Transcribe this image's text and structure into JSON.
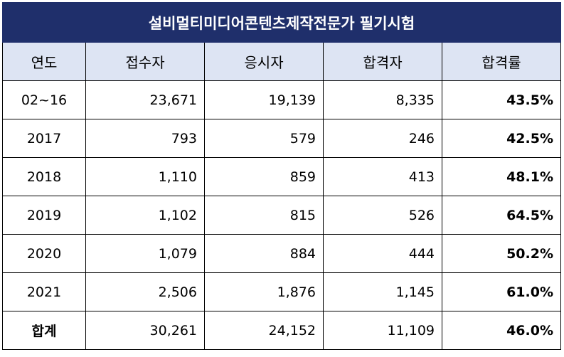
{
  "table": {
    "title": "설비멀티미디어콘텐츠제작전문가 필기시험",
    "headers": [
      "연도",
      "접수자",
      "응시자",
      "합격자",
      "합격률"
    ],
    "rows": [
      {
        "year": "02~16",
        "applicants": "23,671",
        "examinees": "19,139",
        "passers": "8,335",
        "pass_rate": "43.5%"
      },
      {
        "year": "2017",
        "applicants": "793",
        "examinees": "579",
        "passers": "246",
        "pass_rate": "42.5%"
      },
      {
        "year": "2018",
        "applicants": "1,110",
        "examinees": "859",
        "passers": "413",
        "pass_rate": "48.1%"
      },
      {
        "year": "2019",
        "applicants": "1,102",
        "examinees": "815",
        "passers": "526",
        "pass_rate": "64.5%"
      },
      {
        "year": "2020",
        "applicants": "1,079",
        "examinees": "884",
        "passers": "444",
        "pass_rate": "50.2%"
      },
      {
        "year": "2021",
        "applicants": "2,506",
        "examinees": "1,876",
        "passers": "1,145",
        "pass_rate": "61.0%"
      }
    ],
    "total": {
      "label": "합계",
      "applicants": "30,261",
      "examinees": "24,152",
      "passers": "11,109",
      "pass_rate": "46.0%"
    }
  },
  "colors": {
    "title_bg": "#1f2f6b",
    "title_text": "#ffffff",
    "header_bg": "#dde4f3",
    "border": "#000000"
  }
}
